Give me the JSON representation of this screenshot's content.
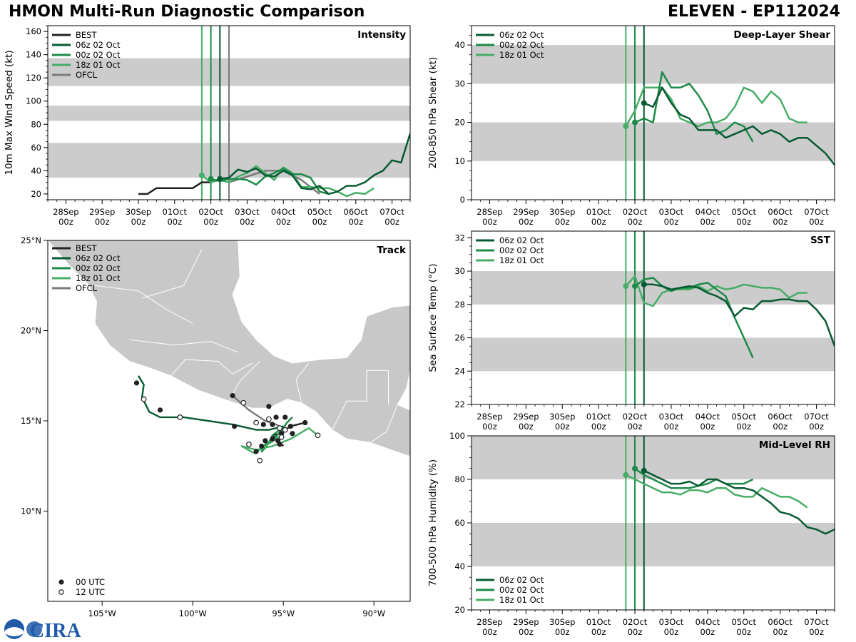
{
  "header": {
    "title": "HMON Multi-Run Diagnostic Comparison",
    "storm": "ELEVEN - EP112024"
  },
  "logo_text": "CIRA",
  "colors": {
    "best": "#222222",
    "run06z02": "#085a32",
    "run00z02": "#1d8a48",
    "run18z01": "#47ad66",
    "ofcl": "#7a7a7a",
    "band": "#cccccc",
    "land": "#c8c8c8",
    "border": "#ffffff"
  },
  "time_axis": {
    "ticks": [
      {
        "t": 0,
        "l1": "28Sep",
        "l2": "00z"
      },
      {
        "t": 24,
        "l1": "29Sep",
        "l2": "00z"
      },
      {
        "t": 48,
        "l1": "30Sep",
        "l2": "00z"
      },
      {
        "t": 72,
        "l1": "01Oct",
        "l2": "00z"
      },
      {
        "t": 96,
        "l1": "02Oct",
        "l2": "00z"
      },
      {
        "t": 120,
        "l1": "03Oct",
        "l2": "00z"
      },
      {
        "t": 144,
        "l1": "04Oct",
        "l2": "00z"
      },
      {
        "t": 168,
        "l1": "05Oct",
        "l2": "00z"
      },
      {
        "t": 192,
        "l1": "06Oct",
        "l2": "00z"
      },
      {
        "t": 216,
        "l1": "07Oct",
        "l2": "00z"
      }
    ],
    "range": [
      -12,
      228
    ],
    "init_lines": [
      {
        "series": "run18z01",
        "t": 90
      },
      {
        "series": "run00z02",
        "t": 96
      },
      {
        "series": "run06z02",
        "t": 102
      },
      {
        "series": "ofcl",
        "t": 108
      }
    ]
  },
  "legend_labels": {
    "best": "BEST",
    "run06z02": "06z 02 Oct",
    "run00z02": "00z 02 Oct",
    "run18z01": "18z 01 Oct",
    "ofcl": "OFCL",
    "utc00": "00 UTC",
    "utc12": "12 UTC"
  },
  "chart_data": [
    {
      "id": "intensity",
      "type": "line",
      "title": "Intensity",
      "ylabel": "10m Max Wind Speed (kt)",
      "ylim": [
        15,
        165
      ],
      "yticks": [
        20,
        40,
        60,
        80,
        100,
        120,
        140,
        160
      ],
      "bands": [
        [
          34,
          64
        ],
        [
          83,
          96
        ],
        [
          113,
          137
        ]
      ],
      "legend": [
        "best",
        "run06z02",
        "run00z02",
        "run18z01",
        "ofcl"
      ],
      "init_lines": [
        "run18z01",
        "run00z02",
        "run06z02",
        "ofcl"
      ],
      "series": [
        {
          "key": "best",
          "t": [
            48,
            54,
            60,
            66,
            72,
            78,
            84,
            90,
            96,
            102
          ],
          "v": [
            20,
            20,
            25,
            25,
            25,
            25,
            25,
            30,
            30,
            33
          ]
        },
        {
          "key": "ofcl",
          "t": [
            108,
            120,
            132,
            144,
            156,
            168
          ],
          "v": [
            30,
            35,
            40,
            40,
            32,
            20
          ]
        },
        {
          "key": "run18z01",
          "t": [
            90,
            96,
            102,
            108,
            114,
            120,
            126,
            132,
            138,
            144,
            150,
            156,
            162,
            168,
            174,
            180,
            186,
            192,
            198,
            204
          ],
          "v": [
            36,
            30,
            32,
            30,
            35,
            38,
            44,
            38,
            32,
            43,
            38,
            26,
            26,
            25,
            25,
            22,
            18,
            21,
            20,
            25
          ]
        },
        {
          "key": "run00z02",
          "t": [
            96,
            102,
            108,
            114,
            120,
            126,
            132,
            138,
            144,
            150,
            156,
            162,
            168,
            174
          ],
          "v": [
            33,
            31,
            33,
            33,
            32,
            28,
            35,
            38,
            42,
            37,
            37,
            34,
            22,
            20
          ]
        },
        {
          "key": "run06z02",
          "t": [
            102,
            108,
            114,
            120,
            126,
            132,
            138,
            144,
            150,
            156,
            162,
            168,
            174,
            180,
            186,
            192,
            198,
            204,
            210,
            216,
            222,
            228
          ],
          "v": [
            33,
            34,
            41,
            39,
            42,
            36,
            35,
            40,
            36,
            25,
            24,
            27,
            20,
            22,
            27,
            27,
            30,
            36,
            40,
            49,
            47,
            72
          ]
        }
      ]
    },
    {
      "id": "shear",
      "type": "line",
      "title": "Deep-Layer Shear",
      "ylabel": "200-850 hPa Shear (kt)",
      "ylim": [
        0,
        45
      ],
      "yticks": [
        0,
        10,
        20,
        30,
        40
      ],
      "bands": [
        [
          10,
          20
        ],
        [
          30,
          40
        ]
      ],
      "legend": [
        "run06z02",
        "run00z02",
        "run18z01"
      ],
      "init_lines": [
        "run18z01",
        "run00z02",
        "run06z02"
      ],
      "series": [
        {
          "key": "run18z01",
          "t": [
            90,
            96,
            102,
            108,
            114,
            120,
            126,
            132,
            138,
            144,
            150,
            156,
            162,
            168,
            174,
            180,
            186,
            192,
            198,
            204,
            210
          ],
          "v": [
            19,
            23,
            29,
            29,
            29,
            26,
            21,
            20,
            19,
            20,
            20,
            21,
            24,
            29,
            28,
            25,
            28,
            26,
            21,
            20,
            20
          ]
        },
        {
          "key": "run00z02",
          "t": [
            96,
            102,
            108,
            114,
            120,
            126,
            132,
            138,
            144,
            150,
            156,
            162,
            168,
            174
          ],
          "v": [
            20,
            21,
            20,
            33,
            29,
            29,
            30,
            27,
            23,
            17,
            18,
            20,
            19,
            15
          ]
        },
        {
          "key": "run06z02",
          "t": [
            102,
            108,
            114,
            120,
            126,
            132,
            138,
            144,
            150,
            156,
            162,
            168,
            174,
            180,
            186,
            192,
            198,
            204,
            210,
            216,
            222,
            228
          ],
          "v": [
            25,
            24,
            29,
            25,
            22,
            21,
            18,
            18,
            18,
            16,
            17,
            18,
            19,
            17,
            18,
            17,
            15,
            16,
            16,
            14,
            12,
            9
          ]
        }
      ]
    },
    {
      "id": "sst",
      "type": "line",
      "title": "SST",
      "ylabel": "Sea Surface Temp (°C)",
      "ylim": [
        22,
        32.4
      ],
      "yticks": [
        22,
        24,
        26,
        28,
        30,
        32
      ],
      "bands": [
        [
          24,
          26
        ],
        [
          28,
          30
        ]
      ],
      "legend": [
        "run06z02",
        "run00z02",
        "run18z01"
      ],
      "init_lines": [
        "run18z01",
        "run00z02",
        "run06z02"
      ],
      "series": [
        {
          "key": "run18z01",
          "t": [
            90,
            96,
            102,
            108,
            114,
            120,
            126,
            132,
            138,
            144,
            150,
            156,
            162,
            168,
            174,
            180,
            186,
            192,
            198,
            204,
            210
          ],
          "v": [
            29.1,
            29.7,
            28.1,
            27.9,
            28.7,
            28.9,
            28.9,
            28.9,
            29.1,
            28.8,
            29.1,
            28.9,
            29.0,
            29.2,
            29.1,
            29.0,
            29.0,
            28.9,
            28.4,
            28.7,
            28.7
          ]
        },
        {
          "key": "run00z02",
          "t": [
            96,
            102,
            108,
            114,
            120,
            126,
            132,
            138,
            144,
            150,
            156,
            162,
            168,
            174
          ],
          "v": [
            29.1,
            29.5,
            29.6,
            29.1,
            28.8,
            29.0,
            29.0,
            29.2,
            29.3,
            28.9,
            28.5,
            27.2,
            26.0,
            24.8
          ]
        },
        {
          "key": "run06z02",
          "t": [
            102,
            108,
            114,
            120,
            126,
            132,
            138,
            144,
            150,
            156,
            162,
            168,
            174,
            180,
            186,
            192,
            198,
            204,
            210,
            216,
            222,
            228
          ],
          "v": [
            29.2,
            29.2,
            29.1,
            28.9,
            29.0,
            29.1,
            29.0,
            28.7,
            28.5,
            28.2,
            27.3,
            27.8,
            27.7,
            28.2,
            28.2,
            28.3,
            28.3,
            28.2,
            28.2,
            27.7,
            27.0,
            25.5
          ]
        }
      ]
    },
    {
      "id": "rh",
      "type": "line",
      "title": "Mid-Level RH",
      "ylabel": "700-500 hPa Humidity (%)",
      "ylim": [
        20,
        100
      ],
      "yticks": [
        20,
        40,
        60,
        80,
        100
      ],
      "bands": [
        [
          40,
          60
        ],
        [
          80,
          100
        ]
      ],
      "legend": [
        "run06z02",
        "run00z02",
        "run18z01"
      ],
      "init_lines": [
        "run18z01",
        "run00z02",
        "run06z02"
      ],
      "series": [
        {
          "key": "run18z01",
          "t": [
            90,
            96,
            102,
            108,
            114,
            120,
            126,
            132,
            138,
            144,
            150,
            156,
            162,
            168,
            174,
            180,
            186,
            192,
            198,
            204,
            210
          ],
          "v": [
            82,
            80,
            78,
            76,
            74,
            74,
            73,
            75,
            75,
            74,
            76,
            76,
            73,
            72,
            72,
            76,
            74,
            72,
            72,
            70,
            67
          ]
        },
        {
          "key": "run00z02",
          "t": [
            96,
            102,
            108,
            114,
            120,
            126,
            132,
            138,
            144,
            150,
            156,
            162,
            168,
            174
          ],
          "v": [
            85,
            82,
            80,
            78,
            76,
            76,
            76,
            77,
            78,
            80,
            78,
            78,
            78,
            80
          ]
        },
        {
          "key": "run06z02",
          "t": [
            102,
            108,
            114,
            120,
            126,
            132,
            138,
            144,
            150,
            156,
            162,
            168,
            174,
            180,
            186,
            192,
            198,
            204,
            210,
            216,
            222,
            228
          ],
          "v": [
            84,
            82,
            80,
            78,
            78,
            79,
            77,
            80,
            80,
            78,
            76,
            76,
            75,
            72,
            69,
            65,
            64,
            62,
            58,
            57,
            55,
            57
          ]
        }
      ]
    },
    {
      "id": "track",
      "type": "scatter",
      "title": "Track",
      "xlim": [
        -108,
        -88
      ],
      "ylim": [
        5,
        25
      ],
      "xticks": [
        {
          "v": -105,
          "label": "105°W"
        },
        {
          "v": -100,
          "label": "100°W"
        },
        {
          "v": -95,
          "label": "95°W"
        },
        {
          "v": -90,
          "label": "90°W"
        }
      ],
      "yticks": [
        {
          "v": 10,
          "label": "10°N"
        },
        {
          "v": 15,
          "label": "15°N"
        },
        {
          "v": 20,
          "label": "20°N"
        },
        {
          "v": 25,
          "label": "25°N"
        }
      ],
      "legend": [
        "best",
        "run06z02",
        "run00z02",
        "run18z01",
        "ofcl"
      ],
      "marker_legend": [
        "utc00",
        "utc12"
      ],
      "series": [
        {
          "key": "best",
          "lon": [
            -93.8,
            -94.6,
            -94.9,
            -95.1,
            -95.6,
            -95.3,
            -95.0
          ],
          "lat": [
            14.9,
            14.7,
            14.5,
            14.3,
            14.2,
            13.9,
            13.6
          ]
        },
        {
          "key": "ofcl",
          "lon": [
            -95.0,
            -95.4,
            -96.0,
            -96.9,
            -97.8
          ],
          "lat": [
            14.6,
            14.8,
            15.0,
            15.6,
            16.4
          ]
        },
        {
          "key": "run06z02",
          "lon": [
            -95.0,
            -95.8,
            -96.5,
            -97.8,
            -100.5,
            -101.8,
            -102.4,
            -102.6,
            -102.8,
            -102.7,
            -103.0
          ],
          "lat": [
            14.7,
            14.5,
            14.5,
            14.8,
            15.2,
            15.2,
            15.5,
            15.9,
            16.3,
            17.0,
            17.5
          ]
        },
        {
          "key": "run00z02",
          "lon": [
            -95.2,
            -95.6,
            -95.8,
            -96.0,
            -96.2,
            -96.0,
            -95.5,
            -95.1,
            -94.8,
            -94.5
          ],
          "lat": [
            14.5,
            14.2,
            13.8,
            13.5,
            13.3,
            13.7,
            14.0,
            14.5,
            14.9,
            15.2
          ]
        },
        {
          "key": "run18z01",
          "lon": [
            -95.0,
            -95.4,
            -96.0,
            -96.6,
            -97.3,
            -96.5,
            -95.6,
            -94.6,
            -93.6,
            -93.1
          ],
          "lat": [
            14.3,
            14.0,
            13.6,
            13.2,
            13.6,
            13.4,
            13.6,
            14.0,
            14.6,
            14.2
          ]
        }
      ],
      "markers_00": [
        {
          "lon": -103.1,
          "lat": 17.1
        },
        {
          "lon": -101.8,
          "lat": 15.6
        },
        {
          "lon": -97.7,
          "lat": 14.7
        },
        {
          "lon": -97.8,
          "lat": 16.4
        },
        {
          "lon": -95.8,
          "lat": 15.8
        },
        {
          "lon": -96.1,
          "lat": 14.8
        },
        {
          "lon": -95.6,
          "lat": 14.8
        },
        {
          "lon": -95.4,
          "lat": 15.2
        },
        {
          "lon": -94.9,
          "lat": 15.2
        },
        {
          "lon": -93.8,
          "lat": 14.9
        },
        {
          "lon": -94.6,
          "lat": 14.7
        },
        {
          "lon": -95.1,
          "lat": 14.3
        },
        {
          "lon": -95.6,
          "lat": 14.0
        },
        {
          "lon": -95.3,
          "lat": 13.9
        },
        {
          "lon": -96.2,
          "lat": 13.6
        },
        {
          "lon": -96.0,
          "lat": 13.9
        },
        {
          "lon": -95.2,
          "lat": 13.7
        },
        {
          "lon": -96.5,
          "lat": 13.3
        },
        {
          "lon": -94.5,
          "lat": 14.3
        }
      ],
      "markers_12": [
        {
          "lon": -102.7,
          "lat": 16.2
        },
        {
          "lon": -100.7,
          "lat": 15.2
        },
        {
          "lon": -97.2,
          "lat": 16.0
        },
        {
          "lon": -96.5,
          "lat": 14.9
        },
        {
          "lon": -95.8,
          "lat": 15.1
        },
        {
          "lon": -95.2,
          "lat": 14.6
        },
        {
          "lon": -94.9,
          "lat": 14.5
        },
        {
          "lon": -95.1,
          "lat": 14.1
        },
        {
          "lon": -96.9,
          "lat": 13.7
        },
        {
          "lon": -96.3,
          "lat": 12.8
        },
        {
          "lon": -93.1,
          "lat": 14.2
        }
      ]
    }
  ]
}
